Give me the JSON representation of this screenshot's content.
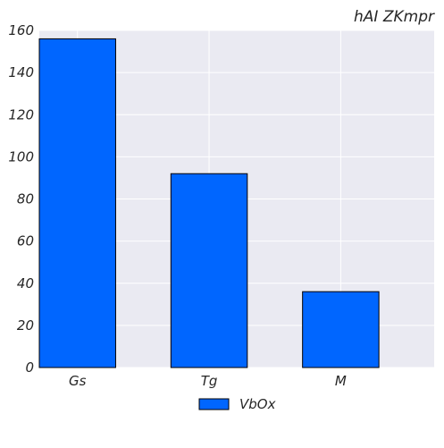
{
  "chart_data": {
    "type": "bar",
    "title": "hAI ZKmpr",
    "categories": [
      "Gs",
      "Tg",
      "M"
    ],
    "series": [
      {
        "name": "VbOx",
        "values": [
          156,
          92,
          36
        ],
        "color": "#0066ff"
      }
    ],
    "xlabel": "",
    "ylabel": "",
    "ylim": [
      0,
      160
    ],
    "yticks": [
      "0",
      "20",
      "40",
      "60",
      "80",
      "100",
      "120",
      "140",
      "160"
    ],
    "grid": true,
    "legend_position": "bottom-center",
    "plot_background": "#eaeaf2",
    "grid_color": "#ffffff",
    "bar_edge_color": "#000000"
  }
}
